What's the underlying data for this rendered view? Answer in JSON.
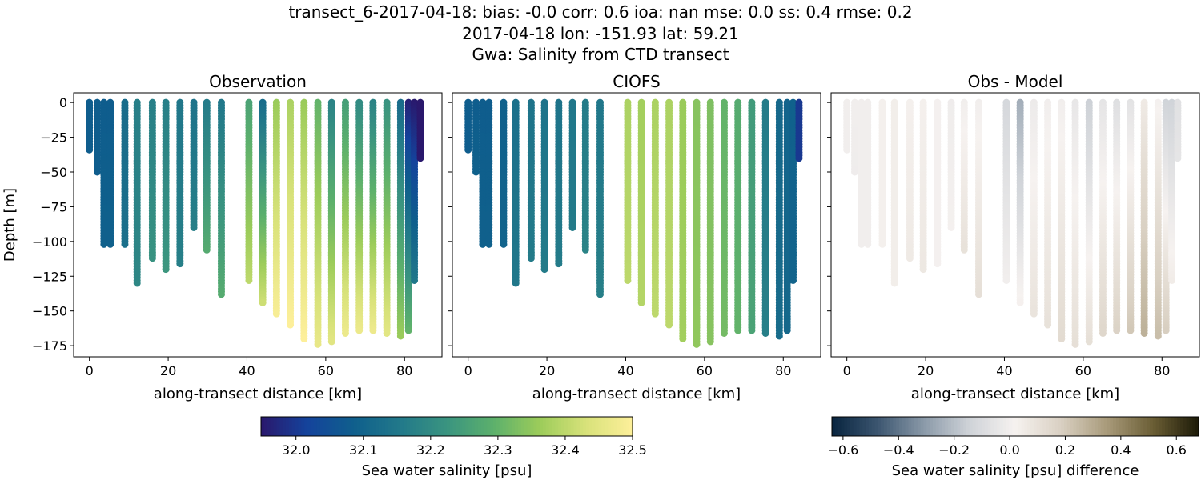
{
  "title_lines": [
    "transect_6-2017-04-18: bias: -0.0  corr: 0.6  ioa: nan  mse: 0.0  ss: 0.4  rmse: 0.2",
    "2017-04-18 lon: -151.93 lat: 59.21",
    "Gwa: Salinity from CTD transect"
  ],
  "chart_data": [
    {
      "type": "scatter",
      "title": "Observation",
      "xlabel": "along-transect distance [km]",
      "ylabel": "Depth [m]",
      "xlim": [
        -4,
        89.5
      ],
      "ylim": [
        -183,
        7
      ],
      "xticks": [
        0,
        20,
        40,
        60,
        80
      ],
      "yticks": [
        0,
        -25,
        -50,
        -75,
        -100,
        -125,
        -150,
        -175
      ],
      "colormap": "haline",
      "field": "obs"
    },
    {
      "type": "scatter",
      "title": "CIOFS",
      "xlabel": "along-transect distance [km]",
      "ylabel": "",
      "xlim": [
        -4,
        89.5
      ],
      "ylim": [
        -183,
        7
      ],
      "xticks": [
        0,
        20,
        40,
        60,
        80
      ],
      "yticks": [
        0,
        -25,
        -50,
        -75,
        -100,
        -125,
        -150,
        -175
      ],
      "colormap": "haline",
      "field": "model"
    },
    {
      "type": "scatter",
      "title": "Obs - Model",
      "xlabel": "along-transect distance [km]",
      "ylabel": "",
      "xlim": [
        -4,
        89.5
      ],
      "ylim": [
        -183,
        7
      ],
      "xticks": [
        0,
        20,
        40,
        60,
        80
      ],
      "yticks": [
        0,
        -25,
        -50,
        -75,
        -100,
        -125,
        -150,
        -175
      ],
      "colormap": "diff",
      "field": "diff"
    }
  ],
  "profiles_columns": [
    "distance_km",
    "max_depth_m",
    "obs_surface_psu",
    "obs_bottom_psu",
    "model_surface_psu",
    "model_bottom_psu"
  ],
  "profiles": [
    [
      0,
      35,
      32.08,
      32.08,
      32.08,
      32.08
    ],
    [
      2,
      50,
      32.08,
      32.08,
      32.08,
      32.09
    ],
    [
      3.7,
      102,
      32.08,
      32.09,
      32.08,
      32.09
    ],
    [
      5.3,
      102,
      32.08,
      32.09,
      32.08,
      32.09
    ],
    [
      9,
      102,
      32.12,
      32.13,
      32.09,
      32.1
    ],
    [
      12.1,
      130,
      32.17,
      32.19,
      32.13,
      32.15
    ],
    [
      16,
      112,
      32.17,
      32.22,
      32.14,
      32.16
    ],
    [
      19.4,
      120,
      32.17,
      32.23,
      32.14,
      32.16
    ],
    [
      23,
      117,
      32.15,
      32.17,
      32.14,
      32.16
    ],
    [
      26.5,
      90,
      32.14,
      32.17,
      32.15,
      32.16
    ],
    [
      29.8,
      107,
      32.16,
      32.28,
      32.16,
      32.18
    ],
    [
      33.5,
      138,
      32.15,
      32.28,
      32.15,
      32.17
    ],
    [
      40.5,
      129,
      32.26,
      32.4,
      32.38,
      32.4
    ],
    [
      44,
      145,
      32.12,
      32.42,
      32.37,
      32.39
    ],
    [
      47.5,
      153,
      32.36,
      32.49,
      32.38,
      32.4
    ],
    [
      51,
      161,
      32.38,
      32.5,
      32.38,
      32.4
    ],
    [
      54.5,
      170,
      32.36,
      32.5,
      32.36,
      32.37
    ],
    [
      58,
      174,
      32.3,
      32.46,
      32.34,
      32.35
    ],
    [
      61.5,
      173,
      32.18,
      32.45,
      32.33,
      32.34
    ],
    [
      65,
      167,
      32.25,
      32.47,
      32.3,
      32.32
    ],
    [
      68.5,
      165,
      32.2,
      32.47,
      32.28,
      32.3
    ],
    [
      72,
      164,
      32.18,
      32.47,
      32.24,
      32.26
    ],
    [
      75.5,
      166,
      32.22,
      32.45,
      32.16,
      32.17
    ],
    [
      79,
      168,
      32.12,
      32.36,
      32.11,
      32.12
    ],
    [
      81,
      165,
      31.96,
      32.3,
      32.1,
      32.11
    ],
    [
      82.5,
      129,
      31.95,
      32.15,
      32.09,
      32.1
    ],
    [
      84,
      41,
      31.93,
      31.95,
      32.0,
      32.0
    ]
  ],
  "colorbars": [
    {
      "label": "Sea water salinity [psu]",
      "range": [
        31.948,
        32.5
      ],
      "ticks": [
        "32.0",
        "32.1",
        "32.2",
        "32.3",
        "32.4",
        "32.5"
      ],
      "tick_values": [
        32.0,
        32.1,
        32.2,
        32.3,
        32.4,
        32.5
      ],
      "colormap": "haline"
    },
    {
      "label": "Sea water salinity [psu] difference",
      "range": [
        -0.64,
        0.68
      ],
      "ticks": [
        "−0.6",
        "−0.4",
        "−0.2",
        "0.0",
        "0.2",
        "0.4",
        "0.6"
      ],
      "tick_values": [
        -0.6,
        -0.4,
        -0.2,
        0,
        0.2,
        0.4,
        0.6
      ],
      "colormap": "diff"
    }
  ],
  "colormaps": {
    "haline": [
      "#2a186c",
      "#14439c",
      "#0f5f8c",
      "#22798a",
      "#3a9480",
      "#5cb06c",
      "#9ccc5a",
      "#d8e27a",
      "#fdef9a"
    ],
    "diff": [
      "#08243f",
      "#3c5670",
      "#8a99a8",
      "#cfd3d8",
      "#f6f2f0",
      "#d9d0c2",
      "#a89a7a",
      "#6b5e35",
      "#1c1a07"
    ]
  }
}
